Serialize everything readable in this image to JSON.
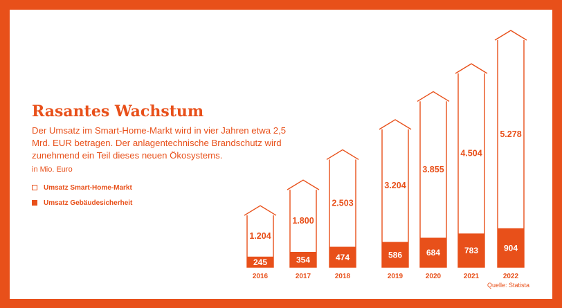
{
  "chart_data": {
    "type": "bar",
    "title": "Rasantes Wachstum",
    "subtitle": "Der Umsatz im Smart-Home-Markt wird in vier Jahren etwa 2,5 Mrd. EUR betragen. Der anlagentechnische Brandschutz wird zunehmend ein Teil dieses neuen Ökosystems.",
    "unit_label": "in Mio. Euro",
    "source": "Quelle: Statista",
    "categories": [
      "2016",
      "2017",
      "2018",
      "2019",
      "2020",
      "2021",
      "2022"
    ],
    "series": [
      {
        "name": "Umsatz Smart-Home-Markt",
        "values": [
          1204,
          1800,
          2503,
          3204,
          3855,
          4504,
          5278
        ],
        "labels": [
          "1.204",
          "1.800",
          "2.503",
          "3.204",
          "3.855",
          "4.504",
          "5.278"
        ],
        "style": "outline"
      },
      {
        "name": "Umsatz Gebäudesicherheit",
        "values": [
          245,
          354,
          474,
          586,
          684,
          783,
          904
        ],
        "labels": [
          "245",
          "354",
          "474",
          "586",
          "684",
          "783",
          "904"
        ],
        "style": "filled"
      }
    ],
    "accent_color": "#e8501a",
    "background_color": "#ffffff",
    "legend_position": "left"
  }
}
